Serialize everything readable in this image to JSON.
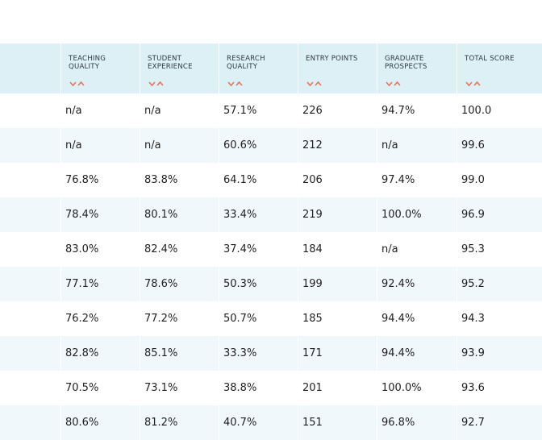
{
  "table": {
    "columns": [
      {
        "label": "TEACHING\nQUALITY"
      },
      {
        "label": "STUDENT\nEXPERIENCE"
      },
      {
        "label": "RESEARCH\nQUALITY"
      },
      {
        "label": "ENTRY POINTS"
      },
      {
        "label": "GRADUATE\nPROSPECTS"
      },
      {
        "label": "TOTAL SCORE"
      }
    ],
    "rows": [
      [
        "n/a",
        "n/a",
        "57.1%",
        "226",
        "94.7%",
        "100.0"
      ],
      [
        "n/a",
        "n/a",
        "60.6%",
        "212",
        "n/a",
        "99.6"
      ],
      [
        "76.8%",
        "83.8%",
        "64.1%",
        "206",
        "97.4%",
        "99.0"
      ],
      [
        "78.4%",
        "80.1%",
        "33.4%",
        "219",
        "100.0%",
        "96.9"
      ],
      [
        "83.0%",
        "82.4%",
        "37.4%",
        "184",
        "n/a",
        "95.3"
      ],
      [
        "77.1%",
        "78.6%",
        "50.3%",
        "199",
        "92.4%",
        "95.2"
      ],
      [
        "76.2%",
        "77.2%",
        "50.7%",
        "185",
        "94.4%",
        "94.3"
      ],
      [
        "82.8%",
        "85.1%",
        "33.3%",
        "171",
        "94.4%",
        "93.9"
      ],
      [
        "70.5%",
        "73.1%",
        "38.8%",
        "201",
        "100.0%",
        "93.6"
      ],
      [
        "80.6%",
        "81.2%",
        "40.7%",
        "151",
        "96.8%",
        "92.7"
      ]
    ],
    "sort_icon_color": "#e8735a",
    "header_bg": "#ddf0f6",
    "alt_row_bg": "#f0f8fb"
  }
}
